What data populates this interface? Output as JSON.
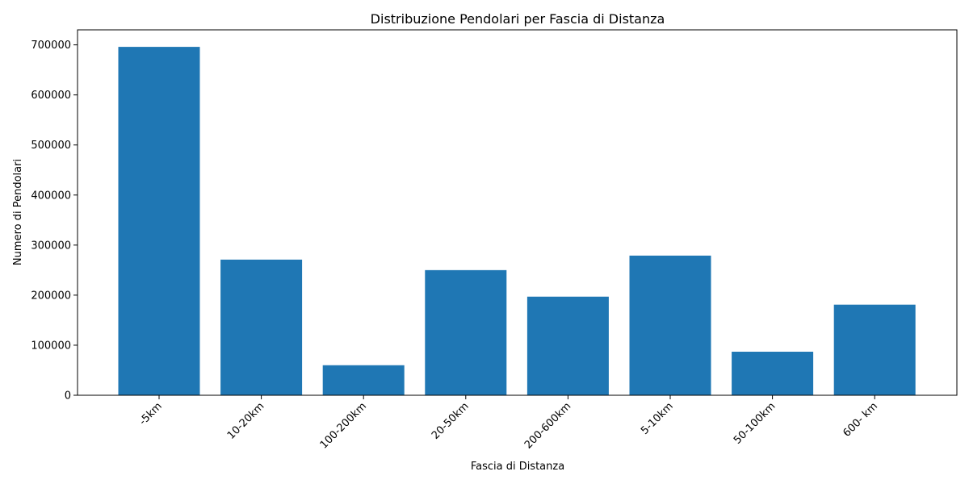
{
  "chart_data": {
    "type": "bar",
    "title": "Distribuzione Pendolari per Fascia di Distanza",
    "xlabel": "Fascia di Distanza",
    "ylabel": "Numero di Pendolari",
    "categories": [
      "-5km",
      "10-20km",
      "100-200km",
      "20-50km",
      "200-600km",
      "5-10km",
      "50-100km",
      "600- km"
    ],
    "values": [
      696000,
      271000,
      60000,
      250000,
      197000,
      279000,
      87000,
      181000
    ],
    "ylim": [
      0,
      730000
    ],
    "yticks": [
      0,
      100000,
      200000,
      300000,
      400000,
      500000,
      600000,
      700000
    ],
    "bar_color": "#1f77b4",
    "grid": false,
    "legend": "none"
  }
}
